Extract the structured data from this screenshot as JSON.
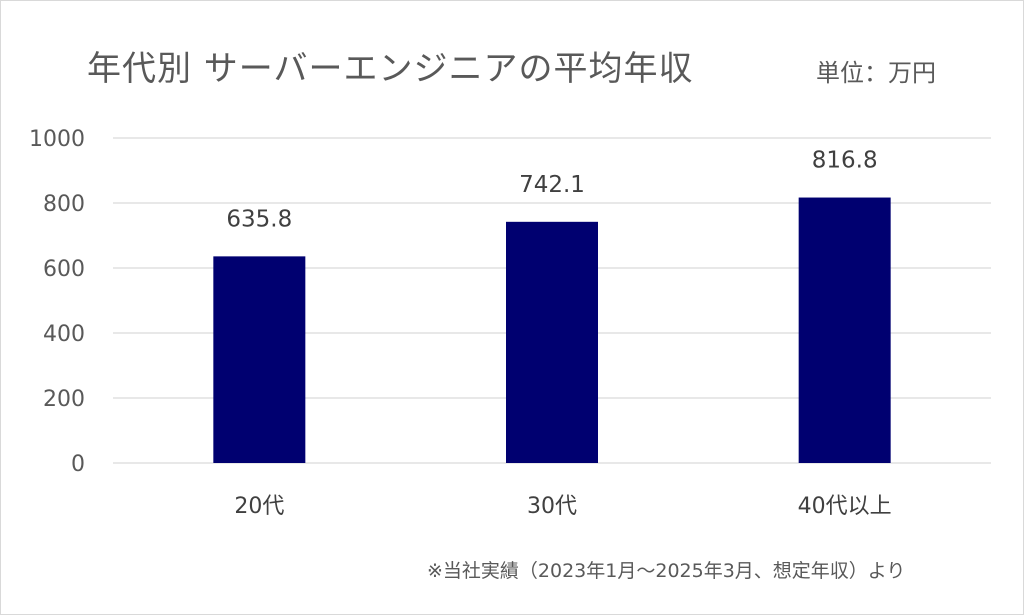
{
  "header": {
    "title": "年代別 サーバーエンジニアの平均年収",
    "unit": "単位：万円"
  },
  "footnote": "※当社実績（2023年1月～2025年3月、想定年収）より",
  "colors": {
    "bar": "#000070",
    "grid": "#d9d9d9",
    "text": "#595959"
  },
  "chart_data": {
    "type": "bar",
    "title": "年代別 サーバーエンジニアの平均年収",
    "categories": [
      "20代",
      "30代",
      "40代以上"
    ],
    "values": [
      635.8,
      742.1,
      816.8
    ],
    "data_labels": [
      "635.8",
      "742.1",
      "816.8"
    ],
    "ylim": [
      0,
      1000
    ],
    "yticks": [
      0,
      200,
      400,
      600,
      800,
      1000
    ],
    "grid": true,
    "legend": "none"
  }
}
